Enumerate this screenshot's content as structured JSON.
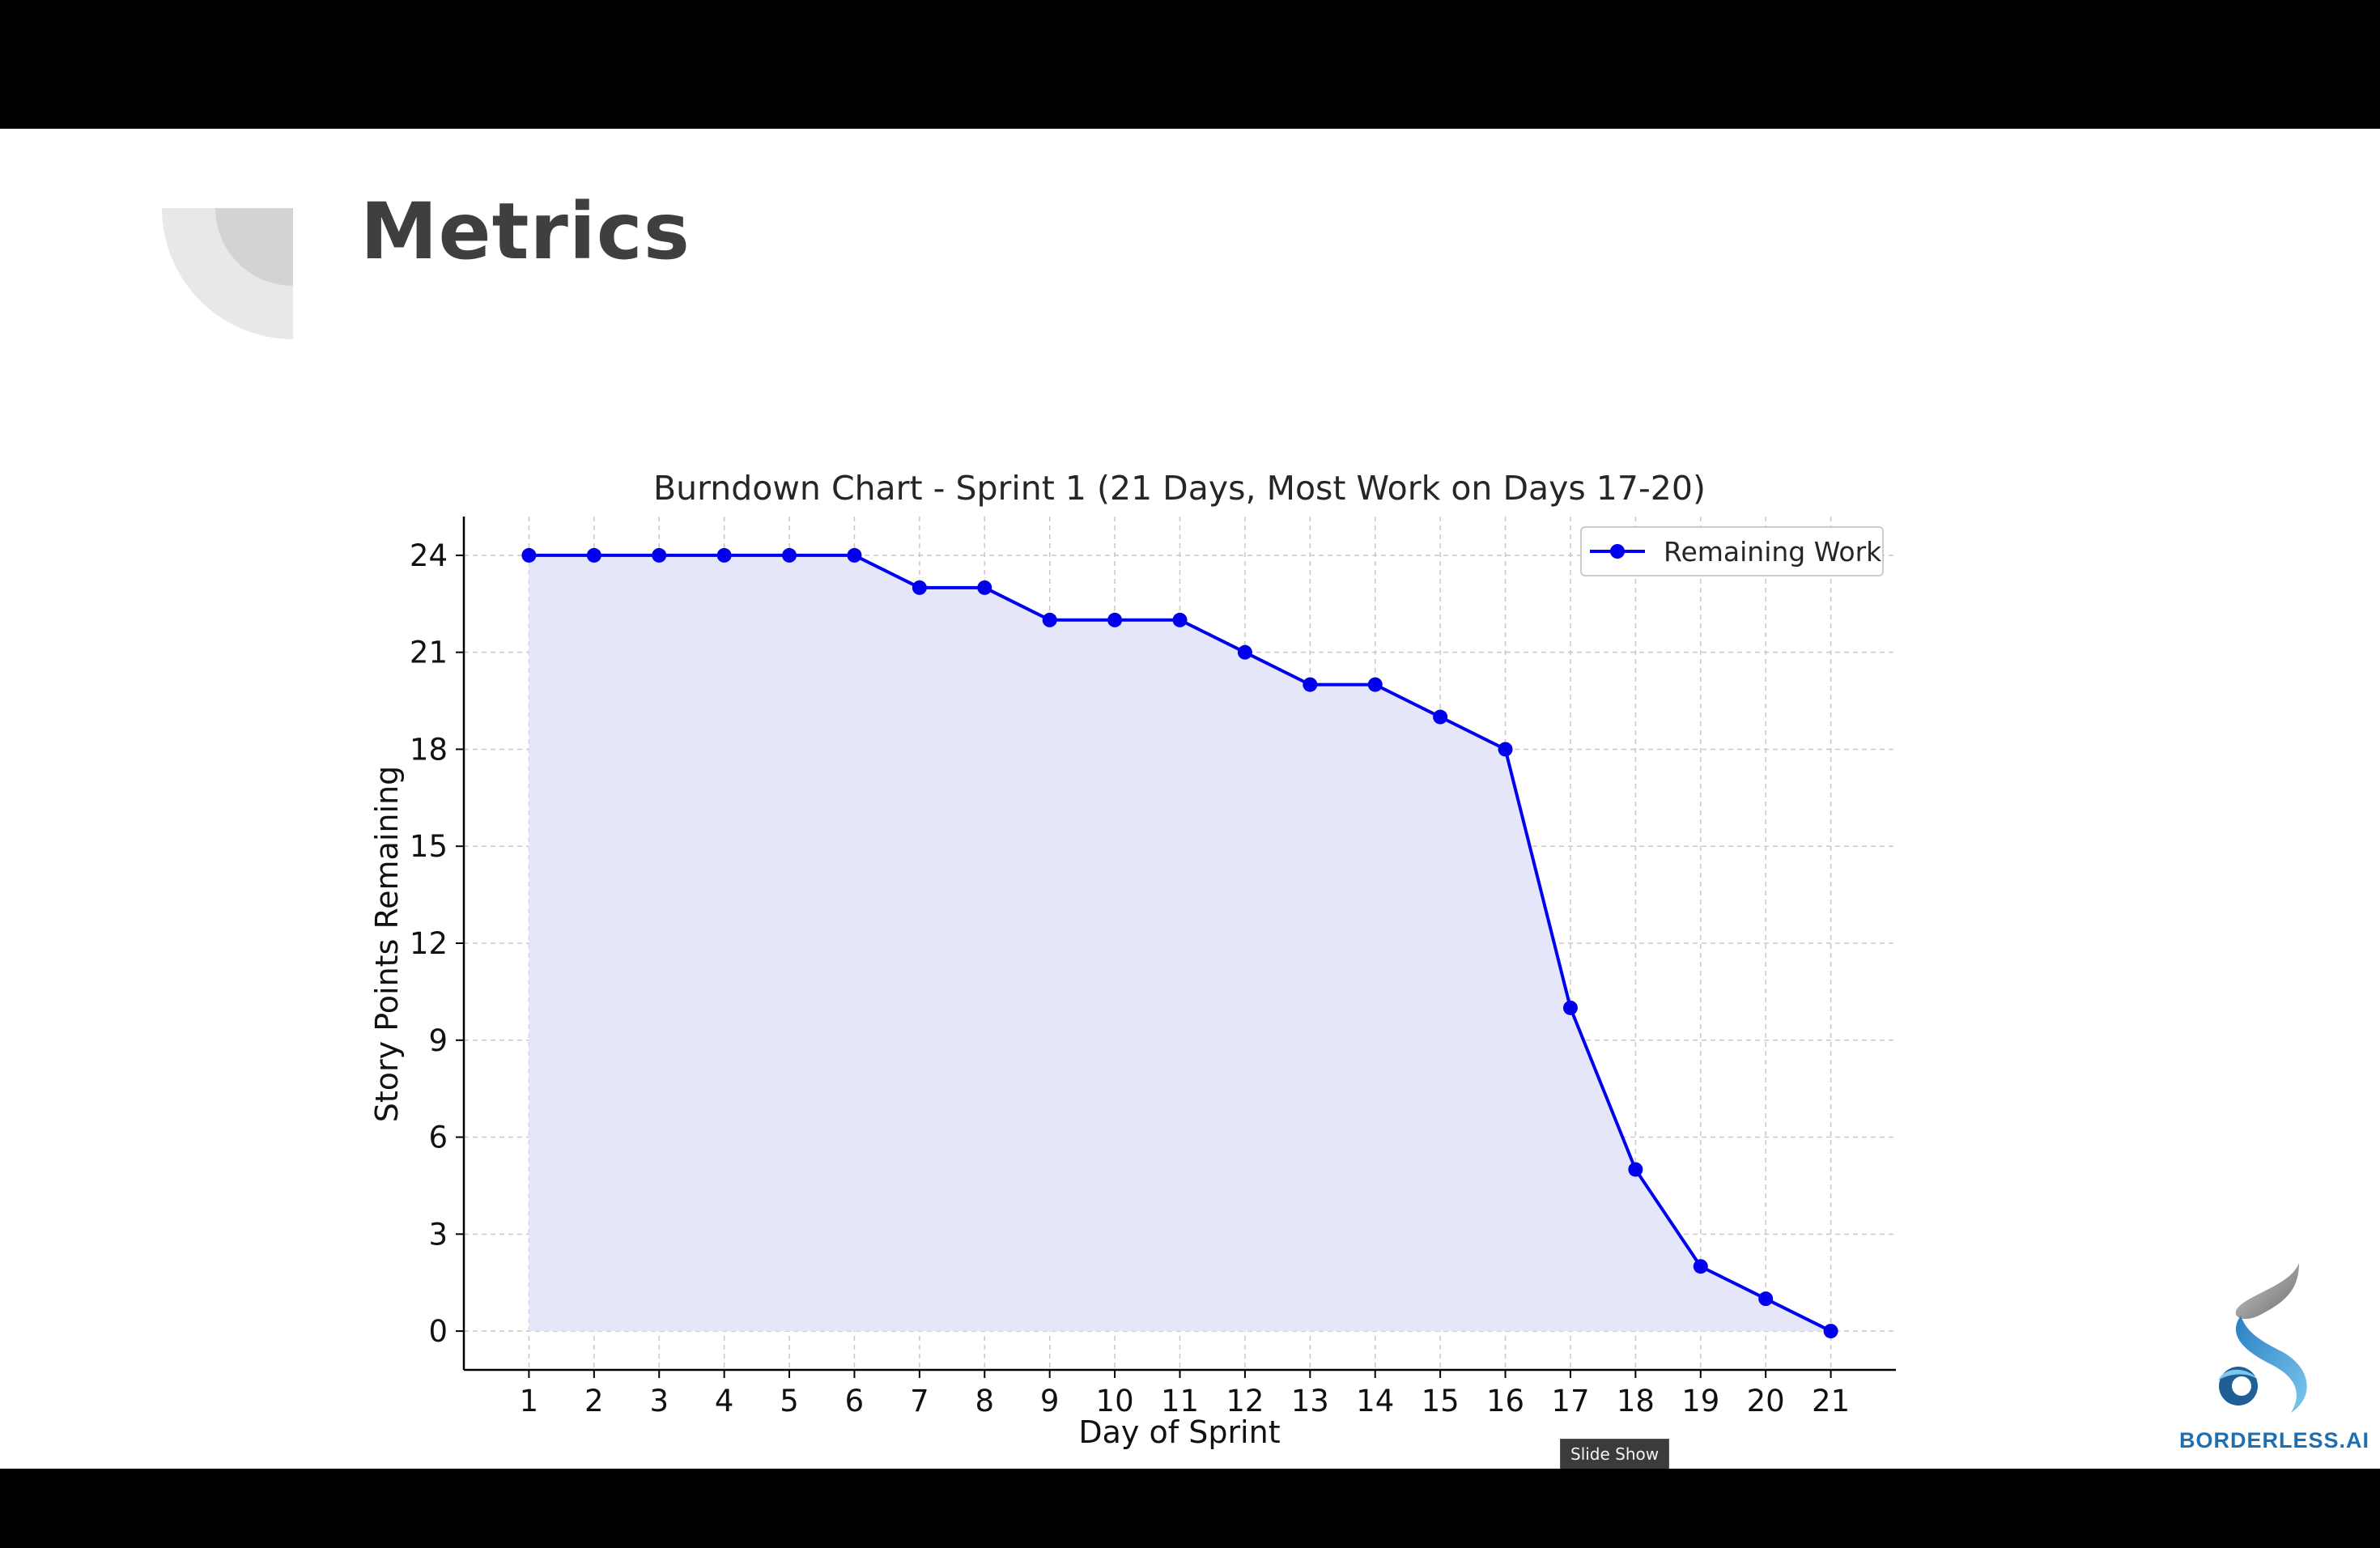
{
  "slide": {
    "title": "Metrics"
  },
  "logo": {
    "icon": "borderless-ai-logo-icon",
    "text": "BORDERLESS.AI"
  },
  "tooltip": {
    "text": "Slide Show"
  },
  "colors": {
    "line": "#0000ee",
    "fill": "#e6e6fa",
    "grid": "#c8c8c8",
    "axis": "#000000",
    "title_text": "#3f3f3f",
    "logo_text": "#1f6fb0"
  },
  "chart_data": {
    "type": "line",
    "title": "Burndown Chart - Sprint 1 (21 Days, Most Work on Days 17-20)",
    "xlabel": "Day of Sprint",
    "ylabel": "Story Points Remaining",
    "x": [
      1,
      2,
      3,
      4,
      5,
      6,
      7,
      8,
      9,
      10,
      11,
      12,
      13,
      14,
      15,
      16,
      17,
      18,
      19,
      20,
      21
    ],
    "series": [
      {
        "name": "Remaining Work",
        "values": [
          24,
          24,
          24,
          24,
          24,
          24,
          23,
          23,
          22,
          22,
          22,
          21,
          20,
          20,
          19,
          18,
          10,
          5,
          2,
          1,
          0
        ]
      }
    ],
    "xticks": [
      1,
      2,
      3,
      4,
      5,
      6,
      7,
      8,
      9,
      10,
      11,
      12,
      13,
      14,
      15,
      16,
      17,
      18,
      19,
      20,
      21
    ],
    "yticks": [
      0,
      3,
      6,
      9,
      12,
      15,
      18,
      21,
      24
    ],
    "xlim": [
      0,
      22
    ],
    "ylim": [
      -1.2,
      25.2
    ],
    "area_fill": true,
    "grid": true,
    "legend_position": "top-right"
  }
}
